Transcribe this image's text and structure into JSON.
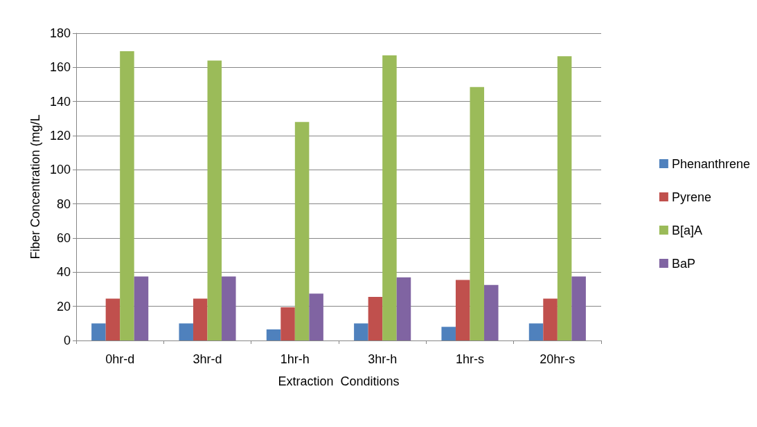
{
  "chart_data": {
    "type": "bar",
    "xlabel": "Extraction  Conditions",
    "ylabel": "Fiber Concentration (mg/L",
    "categories": [
      "0hr-d",
      "3hr-d",
      "1hr-h",
      "3hr-h",
      "1hr-s",
      "20hr-s"
    ],
    "series": [
      {
        "name": "Phenanthrene",
        "color": "#4f81bd",
        "values": [
          10,
          10,
          6.5,
          10,
          8,
          10
        ]
      },
      {
        "name": "Pyrene",
        "color": "#c0504d",
        "values": [
          24.5,
          24.5,
          19.5,
          25.5,
          35.5,
          24.5
        ]
      },
      {
        "name": "B[a]A",
        "color": "#9bbb59",
        "values": [
          169.5,
          164,
          128,
          167,
          148.5,
          166.5
        ]
      },
      {
        "name": "BaP",
        "color": "#8064a2",
        "values": [
          37.5,
          37.5,
          27.5,
          37,
          32.5,
          37.5
        ]
      }
    ],
    "ylim": [
      0,
      180
    ],
    "yticks": [
      0,
      20,
      40,
      60,
      80,
      100,
      120,
      140,
      160,
      180
    ],
    "grid": "y",
    "legend": "right"
  }
}
